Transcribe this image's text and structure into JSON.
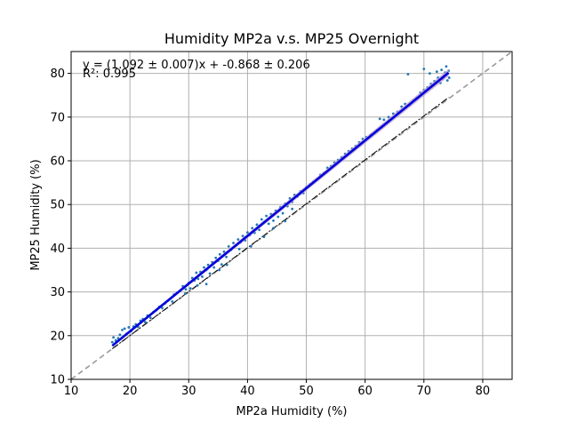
{
  "chart_data": {
    "type": "scatter",
    "title": "Humidity MP2a v.s. MP25 Overnight",
    "xlabel": "MP2a Humidity (%)",
    "ylabel": "MP25 Humidity (%)",
    "xlim": [
      10,
      85
    ],
    "ylim": [
      10,
      85
    ],
    "xticks": [
      10,
      20,
      30,
      40,
      50,
      60,
      70,
      80
    ],
    "yticks": [
      10,
      20,
      30,
      40,
      50,
      60,
      70,
      80
    ],
    "grid": true,
    "annotation_lines": [
      "y = (1.092 ± 0.007)x + -0.868 ± 0.206",
      "R²: 0.995"
    ],
    "fit": {
      "slope": 1.092,
      "intercept": -0.868,
      "x_range": [
        17,
        74.2
      ]
    },
    "identity_line": {
      "slope": 1,
      "intercept": 0
    },
    "dashdot_line": {
      "x_range": [
        17,
        74.2
      ],
      "y_range": [
        17,
        74.5
      ]
    },
    "points": [
      [
        17,
        18.5
      ],
      [
        17.2,
        19.6
      ],
      [
        17.6,
        18.9
      ],
      [
        18,
        19.4
      ],
      [
        18.3,
        20.2
      ],
      [
        18.7,
        21.3
      ],
      [
        19.1,
        21.6
      ],
      [
        19.4,
        20.4
      ],
      [
        19.8,
        21.9
      ],
      [
        20.2,
        21.0
      ],
      [
        20.6,
        22.1
      ],
      [
        21.0,
        22.6
      ],
      [
        21.4,
        22.0
      ],
      [
        21.8,
        23.4
      ],
      [
        22.2,
        23.8
      ],
      [
        22.6,
        23.1
      ],
      [
        23.0,
        24.6
      ],
      [
        23.5,
        24.1
      ],
      [
        24.0,
        25.4
      ],
      [
        24.5,
        25.8
      ],
      [
        25.0,
        26.6
      ],
      [
        25.5,
        26.3
      ],
      [
        26.0,
        27.4
      ],
      [
        26.5,
        28.0
      ],
      [
        27.0,
        28.6
      ],
      [
        27.5,
        29.4
      ],
      [
        28.0,
        29.8
      ],
      [
        28.5,
        30.2
      ],
      [
        29.0,
        31.3
      ],
      [
        29.5,
        30.6
      ],
      [
        30.0,
        32.1
      ],
      [
        30.3,
        30.8
      ],
      [
        30.6,
        33.2
      ],
      [
        31.0,
        32.6
      ],
      [
        31.3,
        34.4
      ],
      [
        31.6,
        33.0
      ],
      [
        32.0,
        34.6
      ],
      [
        32.3,
        33.5
      ],
      [
        32.6,
        35.6
      ],
      [
        33.0,
        35.0
      ],
      [
        33.3,
        36.2
      ],
      [
        33.6,
        34.2
      ],
      [
        34.0,
        36.8
      ],
      [
        34.3,
        35.6
      ],
      [
        34.6,
        37.8
      ],
      [
        35.0,
        37.1
      ],
      [
        35.3,
        38.6
      ],
      [
        35.6,
        36.3
      ],
      [
        36.0,
        39.2
      ],
      [
        36.4,
        38.0
      ],
      [
        36.8,
        40.4
      ],
      [
        37.2,
        39.6
      ],
      [
        37.6,
        41.2
      ],
      [
        38.0,
        40.6
      ],
      [
        38.4,
        42.0
      ],
      [
        38.8,
        41.3
      ],
      [
        39.2,
        42.8
      ],
      [
        39.6,
        41.8
      ],
      [
        40.0,
        43.6
      ],
      [
        40.4,
        43.0
      ],
      [
        40.8,
        44.6
      ],
      [
        41.2,
        43.5
      ],
      [
        41.6,
        45.4
      ],
      [
        42.0,
        44.2
      ],
      [
        42.4,
        46.6
      ],
      [
        42.8,
        46.0
      ],
      [
        43.2,
        47.4
      ],
      [
        43.6,
        45.6
      ],
      [
        44.0,
        47.8
      ],
      [
        44.4,
        46.3
      ],
      [
        44.8,
        48.6
      ],
      [
        45.2,
        47.2
      ],
      [
        45.6,
        49.4
      ],
      [
        46.0,
        48.0
      ],
      [
        46.4,
        50.2
      ],
      [
        46.8,
        49.6
      ],
      [
        47.2,
        51.4
      ],
      [
        47.6,
        50.6
      ],
      [
        48.0,
        52.2
      ],
      [
        48.5,
        51.8
      ],
      [
        49.0,
        53.0
      ],
      [
        49.5,
        52.6
      ],
      [
        50.0,
        54.0
      ],
      [
        50.6,
        54.6
      ],
      [
        51.2,
        55.2
      ],
      [
        51.8,
        55.8
      ],
      [
        52.4,
        56.8
      ],
      [
        53.0,
        57.2
      ],
      [
        53.6,
        58.4
      ],
      [
        54.2,
        58.8
      ],
      [
        54.8,
        59.6
      ],
      [
        55.4,
        60.2
      ],
      [
        56.0,
        60.8
      ],
      [
        56.6,
        61.6
      ],
      [
        57.2,
        62.2
      ],
      [
        57.8,
        62.8
      ],
      [
        58.4,
        63.4
      ],
      [
        59.0,
        64.2
      ],
      [
        59.6,
        65.0
      ],
      [
        60.2,
        65.4
      ],
      [
        61.0,
        66.0
      ],
      [
        62.0,
        67.0
      ],
      [
        62.5,
        69.6
      ],
      [
        63.2,
        69.4
      ],
      [
        64.0,
        70.0
      ],
      [
        64.8,
        70.8
      ],
      [
        65.5,
        71.2
      ],
      [
        66.2,
        72.4
      ],
      [
        66.8,
        73.0
      ],
      [
        67.3,
        79.8
      ],
      [
        67.6,
        72.8
      ],
      [
        68.2,
        73.8
      ],
      [
        68.8,
        74.4
      ],
      [
        69.4,
        75.6
      ],
      [
        70.0,
        76.2
      ],
      [
        70.0,
        81.0
      ],
      [
        70.6,
        76.8
      ],
      [
        71.0,
        80.0
      ],
      [
        71.2,
        77.6
      ],
      [
        71.8,
        78.2
      ],
      [
        72.2,
        80.4
      ],
      [
        72.4,
        79.0
      ],
      [
        72.8,
        77.8
      ],
      [
        73.0,
        80.8
      ],
      [
        73.4,
        79.4
      ],
      [
        73.6,
        80.2
      ],
      [
        73.8,
        81.6
      ],
      [
        74.0,
        78.4
      ],
      [
        74.2,
        80.6
      ],
      [
        74.3,
        79.0
      ],
      [
        74.0,
        80.0
      ],
      [
        73.2,
        78.8
      ],
      [
        31.5,
        31.5
      ],
      [
        33.0,
        31.8
      ],
      [
        35.2,
        35.0
      ],
      [
        36.5,
        36.2
      ],
      [
        38.6,
        39.8
      ],
      [
        40.6,
        40.4
      ],
      [
        42.8,
        42.6
      ],
      [
        44.4,
        44.6
      ],
      [
        46.4,
        46.2
      ],
      [
        47.6,
        49.0
      ],
      [
        29.4,
        29.6
      ],
      [
        27.2,
        27.8
      ]
    ]
  },
  "colors": {
    "points": "#1f77b4",
    "fit_line": "#0000dd",
    "fit_band": "#c0a0c8",
    "identity_line": "#999999",
    "dashdot_line": "#000000",
    "grid": "#b0b0b0"
  }
}
